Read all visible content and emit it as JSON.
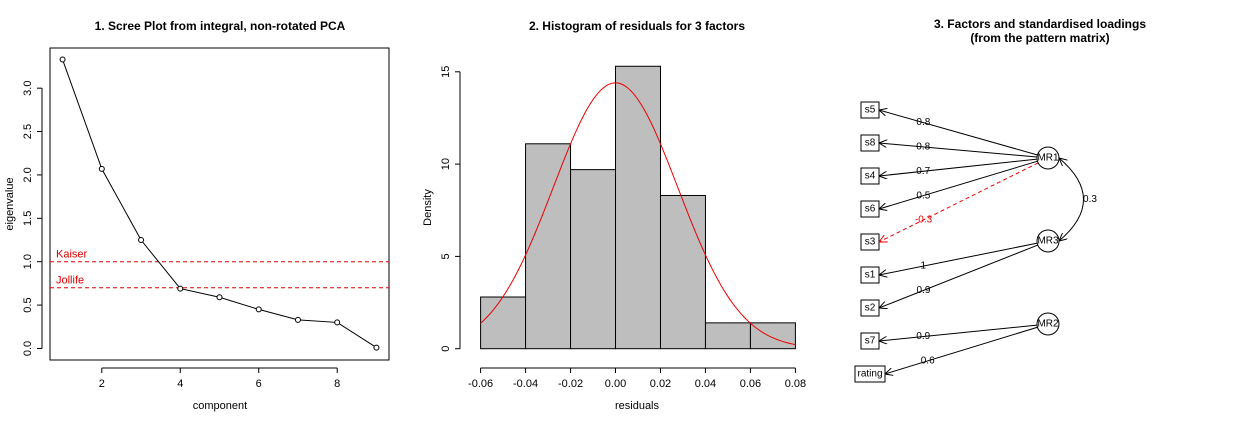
{
  "chart_data": [
    {
      "type": "line",
      "title": "1. Scree Plot from integral, non-rotated PCA",
      "x_label": "component",
      "y_label": "eigenvalue",
      "x": [
        1,
        2,
        3,
        4,
        5,
        6,
        7,
        8,
        9
      ],
      "values": [
        3.33,
        2.07,
        1.25,
        0.69,
        0.59,
        0.45,
        0.33,
        0.3,
        0.01
      ],
      "color": "#000000",
      "xlim": [
        0.68,
        9.32
      ],
      "xticks": [
        2,
        4,
        6,
        8
      ],
      "ylim": [
        -0.133,
        3.463
      ],
      "yticks": [
        {
          "value": 0,
          "label": "0.0"
        },
        0.5,
        {
          "value": 1,
          "label": "1.0"
        },
        1.5,
        {
          "value": 2,
          "label": "2.0"
        },
        2.5,
        {
          "value": 3,
          "label": "3.0"
        }
      ],
      "reference_lines": [
        {
          "label": "Kaiser",
          "value": 1
        },
        {
          "label": "Jollife",
          "value": 0.7
        }
      ],
      "reference_color": "#dd0000"
    },
    {
      "type": "histogram",
      "title": "2. Histogram of residuals for  3 factors",
      "x_label": "residuals",
      "y_label": "Density",
      "bins": [
        -0.06,
        -0.04,
        -0.02,
        0,
        0.02,
        0.04,
        0.06,
        0.08
      ],
      "values": [
        2.8,
        11.1,
        9.7,
        15.3,
        8.3,
        1.4,
        1.4
      ],
      "color": "#bebebe",
      "xlim": [
        -0.0656,
        0.0856
      ],
      "xticks": [
        -0.06,
        -0.04,
        -0.02,
        {
          "value": 0,
          "label": "0.00"
        },
        0.02,
        0.04,
        0.06,
        0.08
      ],
      "ylim": [
        -0.612,
        15.91
      ],
      "yticks": [
        0,
        5,
        10,
        15
      ],
      "curve": {
        "mean": 0,
        "sd": 0.0277,
        "color": "#ee0000"
      }
    }
  ],
  "diagram": {
    "title": [
      "3. Factors and standardised loadings",
      "(from the pattern matrix)"
    ],
    "factors": [
      "MR1",
      "MR3",
      "MR2"
    ],
    "variables": [
      "s5",
      "s8",
      "s4",
      "s6",
      "s3",
      "s1",
      "s2",
      "s7",
      "rating"
    ],
    "loadings": [
      {
        "factor": 0,
        "variable": 0,
        "value": 0.8
      },
      {
        "factor": 0,
        "variable": 1,
        "value": 0.8
      },
      {
        "factor": 0,
        "variable": 2,
        "value": 0.7
      },
      {
        "factor": 0,
        "variable": 3,
        "value": 0.5
      },
      {
        "factor": 0,
        "variable": 4,
        "value": -0.3
      },
      {
        "factor": 1,
        "variable": 5,
        "value": 1
      },
      {
        "factor": 1,
        "variable": 6,
        "value": 0.9
      },
      {
        "factor": 2,
        "variable": 7,
        "value": 0.9
      },
      {
        "factor": 2,
        "variable": 8,
        "value": 0.6
      }
    ],
    "correlations": [
      {
        "from": 0,
        "to": 1,
        "value": 0.3
      }
    ],
    "positive_color": "#000000",
    "negative_color": "#ee0000"
  }
}
